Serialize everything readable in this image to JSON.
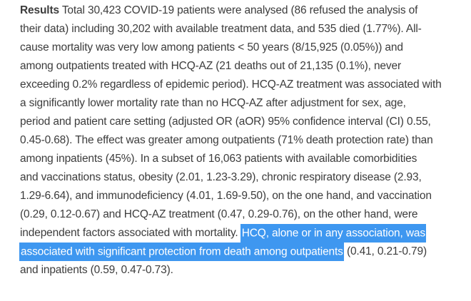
{
  "document": {
    "section_label": "Results",
    "text_color": "#3c3c3c",
    "highlight_color": "#3e97f0",
    "highlight_text_color": "#ffffff",
    "highlighted_sentence": "HCQ, alone or in any association, was associated with significant protection from death among outpatients",
    "lines": [
      {
        "segments": [
          {
            "text": "Results",
            "style": "bold"
          },
          {
            "text": " Total 30,423 COVID-19 patients were analysed (86 refused the analysis of",
            "style": "normal"
          }
        ]
      },
      {
        "segments": [
          {
            "text": "their data) including 30,202 with available treatment data, and 535 died (1.77%). All-",
            "style": "normal"
          }
        ]
      },
      {
        "segments": [
          {
            "text": "cause mortality was very low among patients < 50 years (8/15,925 (0.05%)) and",
            "style": "normal"
          }
        ]
      },
      {
        "segments": [
          {
            "text": "among outpatients treated with HCQ-AZ (21 deaths out of 21,135 (0.1%), never",
            "style": "normal"
          }
        ]
      },
      {
        "segments": [
          {
            "text": "exceeding 0.2% regardless of epidemic period). HCQ-AZ treatment was associated with",
            "style": "normal"
          }
        ]
      },
      {
        "segments": [
          {
            "text": "a significantly lower mortality rate than no HCQ-AZ after adjustment for sex, age,",
            "style": "normal"
          }
        ]
      },
      {
        "segments": [
          {
            "text": "period and patient care setting (adjusted OR (aOR) 95% confidence interval (CI) 0.55,",
            "style": "normal"
          }
        ]
      },
      {
        "segments": [
          {
            "text": "0.45-0.68). The effect was greater among outpatients (71% death protection rate) than",
            "style": "normal"
          }
        ]
      },
      {
        "segments": [
          {
            "text": "among inpatients (45%). In a subset of 16,063 patients with available comorbidities",
            "style": "normal"
          }
        ]
      },
      {
        "segments": [
          {
            "text": "and vaccinations status, obesity (2.01, 1.23-3.29), chronic respiratory disease (2.93,",
            "style": "normal"
          }
        ]
      },
      {
        "segments": [
          {
            "text": "1.29-6.64), and immunodeficiency (4.01, 1.69-9.50), on the one hand, and vaccination",
            "style": "normal"
          }
        ]
      },
      {
        "segments": [
          {
            "text": "(0.29, 0.12-0.67) and HCQ-AZ treatment (0.47, 0.29-0.76), on the other hand, were",
            "style": "normal"
          }
        ]
      },
      {
        "segments": [
          {
            "text": "independent factors associated with mortality. ",
            "style": "normal"
          },
          {
            "text": "HCQ, alone or in any association, was",
            "style": "highlight"
          }
        ]
      },
      {
        "segments": [
          {
            "text": "associated with significant protection from death among outpatients",
            "style": "highlight"
          },
          {
            "text": " (0.41, 0.21-0.79)",
            "style": "normal"
          }
        ]
      },
      {
        "segments": [
          {
            "text": "and inpatients (0.59, 0.47-0.73).",
            "style": "normal"
          }
        ]
      }
    ]
  }
}
